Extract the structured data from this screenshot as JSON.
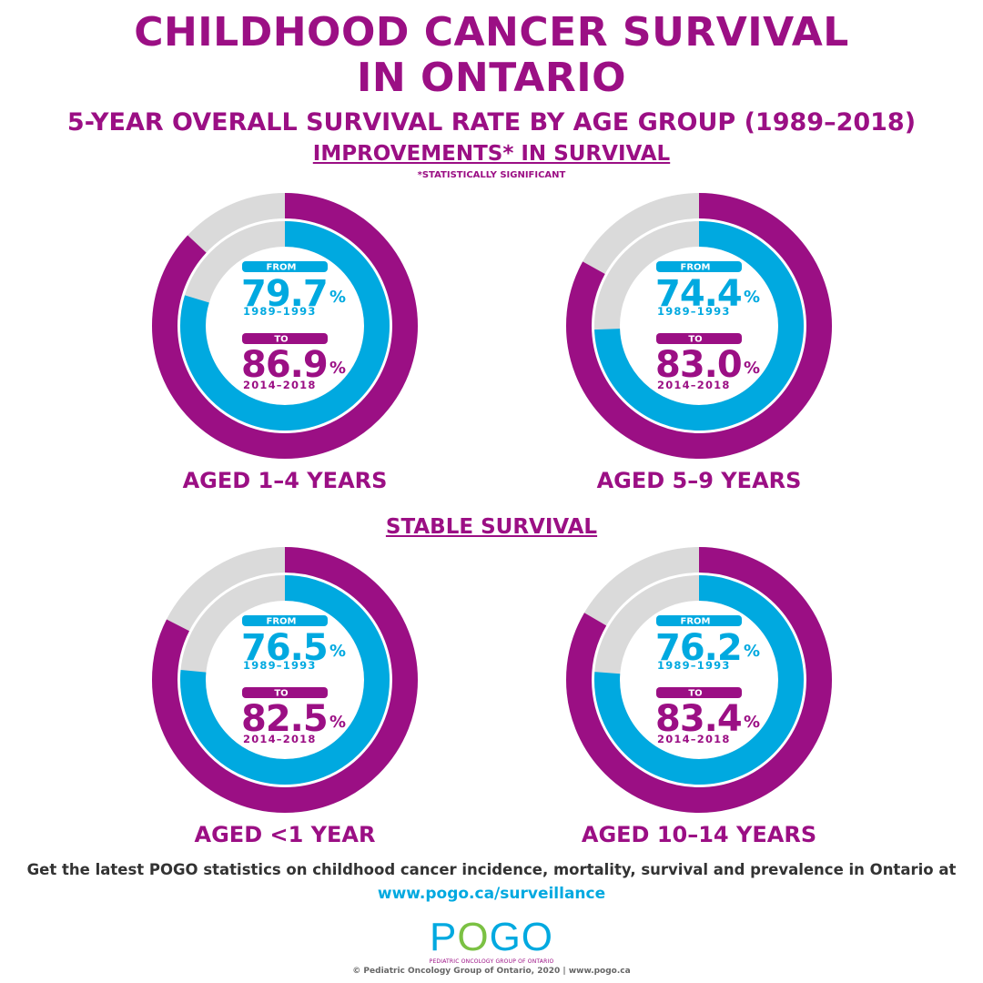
{
  "header": {
    "title_line1": "CHILDHOOD CANCER SURVIVAL",
    "title_line2": "IN ONTARIO",
    "subtitle": "5-YEAR OVERALL SURVIVAL RATE BY AGE GROUP (1989–2018)",
    "section_improvements": "IMPROVEMENTS* IN SURVIVAL",
    "footnote": "*STATISTICALLY SIGNIFICANT",
    "section_stable": "STABLE SURVIVAL"
  },
  "colors": {
    "purple": "#9b0f84",
    "blue": "#00a9e0",
    "grey": "#dadada"
  },
  "chart_data": [
    {
      "type": "pie",
      "group": "AGED 1–4 YEARS",
      "category": "improvement",
      "from_label": "FROM",
      "from_value": 79.7,
      "from_value_text": "79.7",
      "from_period": "1989–1993",
      "to_label": "TO",
      "to_value": 86.9,
      "to_value_text": "86.9",
      "to_period": "2014–2018",
      "unit": "%"
    },
    {
      "type": "pie",
      "group": "AGED 5–9 YEARS",
      "category": "improvement",
      "from_label": "FROM",
      "from_value": 74.4,
      "from_value_text": "74.4",
      "from_period": "1989–1993",
      "to_label": "TO",
      "to_value": 83.0,
      "to_value_text": "83.0",
      "to_period": "2014–2018",
      "unit": "%"
    },
    {
      "type": "pie",
      "group": "AGED <1 YEAR",
      "category": "stable",
      "from_label": "FROM",
      "from_value": 76.5,
      "from_value_text": "76.5",
      "from_period": "1989–1993",
      "to_label": "TO",
      "to_value": 82.5,
      "to_value_text": "82.5",
      "to_period": "2014–2018",
      "unit": "%"
    },
    {
      "type": "pie",
      "group": "AGED 10–14 YEARS",
      "category": "stable",
      "from_label": "FROM",
      "from_value": 76.2,
      "from_value_text": "76.2",
      "from_period": "1989–1993",
      "to_label": "TO",
      "to_value": 83.4,
      "to_value_text": "83.4",
      "to_period": "2014–2018",
      "unit": "%"
    }
  ],
  "footer": {
    "cta": "Get the latest POGO statistics on childhood cancer incidence, mortality, survival and prevalence in Ontario at",
    "link": "www.pogo.ca/surveillance",
    "logo_text": "POGO",
    "logo_subtitle": "PEDIATRIC ONCOLOGY GROUP OF ONTARIO",
    "copyright": "© Pediatric Oncology Group of Ontario, 2020 | www.pogo.ca"
  }
}
